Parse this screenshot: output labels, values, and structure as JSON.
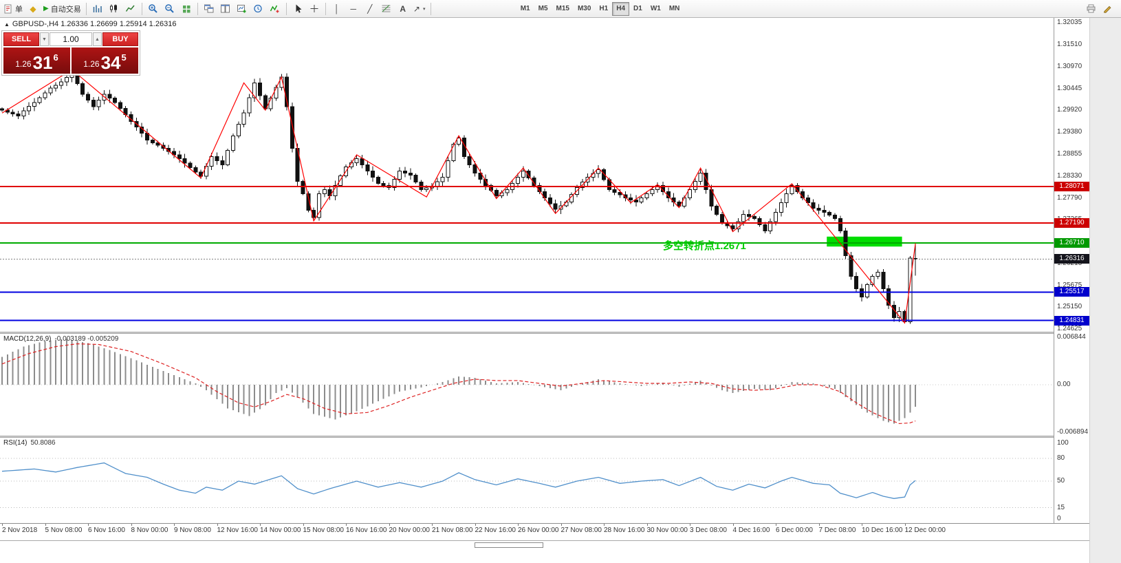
{
  "toolbar": {
    "new_order_label": "单",
    "autotrading_label": "自动交易",
    "timeframes": [
      "M1",
      "M5",
      "M15",
      "M30",
      "H1",
      "H4",
      "D1",
      "W1",
      "MN"
    ],
    "active_timeframe": "H4",
    "glyphs": {
      "diamond": "◆",
      "play": "▶",
      "crosshair": "+",
      "vline": "│",
      "hline": "─",
      "trendline": "╱",
      "text_tool": "A",
      "arrow_tool": "↗",
      "caret": "▾",
      "spin_up": "▲",
      "spin_down": "▼",
      "triangle_up": "▲"
    }
  },
  "quote": {
    "symbol_line": "GBPUSD-,H4 1.26336 1.26699 1.25914 1.26316",
    "open": 1.26336,
    "high": 1.26699,
    "low": 1.25914,
    "close": 1.26316
  },
  "one_click": {
    "sell_label": "SELL",
    "buy_label": "BUY",
    "volume": "1.00",
    "sell_price_small": "1.26",
    "sell_price_big": "31",
    "sell_price_sup": "6",
    "buy_price_small": "1.26",
    "buy_price_big": "34",
    "buy_price_sup": "5"
  },
  "chart_data": [
    {
      "type": "candlestick",
      "title": "GBPUSD-,H4",
      "first_open": 1.2995,
      "closes": [
        1.2992,
        1.2987,
        1.2983,
        1.2978,
        1.299,
        1.3001,
        1.301,
        1.3022,
        1.3034,
        1.3045,
        1.3052,
        1.306,
        1.3071,
        1.3082,
        1.3056,
        1.303,
        1.3016,
        1.3,
        1.3016,
        1.303,
        1.3021,
        1.301,
        1.2996,
        1.2981,
        1.2965,
        1.2951,
        1.2936,
        1.292,
        1.2913,
        1.2907,
        1.29,
        1.2892,
        1.2884,
        1.2875,
        1.2864,
        1.2853,
        1.2842,
        1.2832,
        1.2856,
        1.288,
        1.287,
        1.286,
        1.2895,
        1.293,
        1.2958,
        1.2985,
        1.3022,
        1.3058,
        1.3027,
        1.2995,
        1.3021,
        1.3047,
        1.3072,
        1.3,
        1.29,
        1.282,
        1.279,
        1.275,
        1.2732,
        1.279,
        1.28,
        1.2785,
        1.281,
        1.2833,
        1.2855,
        1.2865,
        1.2875,
        1.286,
        1.2845,
        1.283,
        1.2815,
        1.281,
        1.2805,
        1.2825,
        1.2845,
        1.284,
        1.2835,
        1.2818,
        1.28,
        1.2804,
        1.2808,
        1.2819,
        1.283,
        1.287,
        1.291,
        1.2925,
        1.288,
        1.286,
        1.284,
        1.2825,
        1.281,
        1.2798,
        1.2785,
        1.2792,
        1.28,
        1.2815,
        1.283,
        1.2845,
        1.2828,
        1.281,
        1.2795,
        1.278,
        1.2766,
        1.2752,
        1.2761,
        1.277,
        1.2788,
        1.2805,
        1.2818,
        1.283,
        1.2839,
        1.2848,
        1.2824,
        1.28,
        1.2793,
        1.2787,
        1.278,
        1.2775,
        1.277,
        1.278,
        1.279,
        1.28,
        1.281,
        1.2795,
        1.278,
        1.277,
        1.276,
        1.278,
        1.28,
        1.282,
        1.284,
        1.28,
        1.276,
        1.274,
        1.272,
        1.2712,
        1.2705,
        1.2722,
        1.274,
        1.2735,
        1.273,
        1.2715,
        1.27,
        1.2722,
        1.2745,
        1.2768,
        1.279,
        1.281,
        1.2795,
        1.278,
        1.2768,
        1.2755,
        1.275,
        1.2745,
        1.2738,
        1.273,
        1.27,
        1.264,
        1.259,
        1.256,
        1.254,
        1.257,
        1.259,
        1.26,
        1.256,
        1.252,
        1.249,
        1.2505,
        1.248,
        1.2634,
        1.26316
      ],
      "last_ohlc": [
        1.26336,
        1.26699,
        1.25914,
        1.26316
      ],
      "zigzag": [
        [
          0,
          1.2985
        ],
        [
          13,
          1.309
        ],
        [
          37,
          1.2828
        ],
        [
          45,
          1.3058
        ],
        [
          49,
          1.2992
        ],
        [
          52,
          1.3072
        ],
        [
          58,
          1.2724
        ],
        [
          66,
          1.2884
        ],
        [
          79,
          1.2782
        ],
        [
          85,
          1.293
        ],
        [
          92,
          1.2778
        ],
        [
          97,
          1.2852
        ],
        [
          103,
          1.2742
        ],
        [
          111,
          1.2852
        ],
        [
          117,
          1.2768
        ],
        [
          122,
          1.2812
        ],
        [
          126,
          1.2756
        ],
        [
          130,
          1.2852
        ],
        [
          136,
          1.2698
        ],
        [
          147,
          1.2814
        ],
        [
          168,
          1.2477
        ],
        [
          170,
          1.267
        ]
      ],
      "levels": [
        {
          "price": 1.28071,
          "color": "#e00000",
          "label_bg": "#cc0000",
          "style": "solid",
          "width": 2
        },
        {
          "price": 1.2719,
          "color": "#e00000",
          "label_bg": "#cc0000",
          "style": "solid",
          "width": 2
        },
        {
          "price": 1.2671,
          "color": "#00aa00",
          "label_bg": "#009900",
          "style": "solid",
          "width": 2
        },
        {
          "price": 1.25517,
          "color": "#0000e0",
          "label_bg": "#0000cc",
          "style": "solid",
          "width": 2
        },
        {
          "price": 1.24831,
          "color": "#0000e0",
          "label_bg": "#0000cc",
          "style": "solid",
          "width": 2
        },
        {
          "price": 1.26316,
          "color": "#808080",
          "label_bg": "#14141c",
          "style": "dotted",
          "width": 1
        }
      ],
      "zone": {
        "bar_start": 153.5,
        "bar_end": 167.5,
        "price_top": 1.2686,
        "price_bottom": 1.2662,
        "color": "#00dd00"
      },
      "annotation": {
        "text": "多空转折点1.2671",
        "bar": 123,
        "price": 1.2656,
        "color": "#00cc00",
        "font_size": 15
      },
      "y_axis": [
        1.32035,
        1.3151,
        1.3097,
        1.30445,
        1.2992,
        1.2938,
        1.28855,
        1.2833,
        1.2779,
        1.27265,
        1.2674,
        1.26215,
        1.25675,
        1.2515,
        1.24625
      ],
      "x_axis": [
        [
          "2 Nov 2018",
          0
        ],
        [
          "5 Nov 08:00",
          8
        ],
        [
          "6 Nov 16:00",
          16
        ],
        [
          "8 Nov 00:00",
          24
        ],
        [
          "9 Nov 08:00",
          32
        ],
        [
          "12 Nov 16:00",
          40
        ],
        [
          "14 Nov 00:00",
          48
        ],
        [
          "15 Nov 08:00",
          56
        ],
        [
          "16 Nov 16:00",
          64
        ],
        [
          "20 Nov 00:00",
          72
        ],
        [
          "21 Nov 08:00",
          80
        ],
        [
          "22 Nov 16:00",
          88
        ],
        [
          "26 Nov 00:00",
          96
        ],
        [
          "27 Nov 08:00",
          104
        ],
        [
          "28 Nov 16:00",
          112
        ],
        [
          "30 Nov 00:00",
          120
        ],
        [
          "3 Dec 08:00",
          128
        ],
        [
          "4 Dec 16:00",
          136
        ],
        [
          "6 Dec 00:00",
          144
        ],
        [
          "7 Dec 08:00",
          152
        ],
        [
          "10 Dec 16:00",
          160
        ],
        [
          "12 Dec 00:00",
          168
        ]
      ]
    },
    {
      "type": "macd",
      "label": "MACD(12,26,9)",
      "values": "-0.003189 -0.005209",
      "main": -0.003189,
      "signal": -0.005209,
      "scale": [
        {
          "v": 0.006844,
          "t": "0.006844"
        },
        {
          "v": 0,
          "t": "0.00"
        },
        {
          "v": -0.006894,
          "t": "-0.006894"
        }
      ],
      "histogram_points": [
        [
          0,
          0.004
        ],
        [
          4,
          0.0055
        ],
        [
          8,
          0.0063
        ],
        [
          12,
          0.0066
        ],
        [
          16,
          0.006
        ],
        [
          20,
          0.005
        ],
        [
          24,
          0.0038
        ],
        [
          28,
          0.0026
        ],
        [
          32,
          0.0014
        ],
        [
          36,
          0.0002
        ],
        [
          38,
          -0.0008
        ],
        [
          42,
          -0.0034
        ],
        [
          46,
          -0.0045
        ],
        [
          49,
          -0.003
        ],
        [
          51,
          -0.0012
        ],
        [
          53,
          -0.0005
        ],
        [
          55,
          -0.0018
        ],
        [
          58,
          -0.0042
        ],
        [
          62,
          -0.005
        ],
        [
          66,
          -0.0038
        ],
        [
          70,
          -0.0024
        ],
        [
          74,
          -0.001
        ],
        [
          78,
          -0.0004
        ],
        [
          82,
          0.0004
        ],
        [
          85,
          0.0012
        ],
        [
          88,
          0.001
        ],
        [
          92,
          0.0002
        ],
        [
          96,
          0.0004
        ],
        [
          100,
          -0.0002
        ],
        [
          104,
          -0.0008
        ],
        [
          108,
          0.0002
        ],
        [
          111,
          0.0008
        ],
        [
          115,
          0.0002
        ],
        [
          119,
          -0.0002
        ],
        [
          123,
          0.0003
        ],
        [
          126,
          -0.0003
        ],
        [
          130,
          0.0006
        ],
        [
          134,
          -0.0008
        ],
        [
          136,
          -0.0012
        ],
        [
          140,
          -0.0006
        ],
        [
          143,
          -0.0008
        ],
        [
          147,
          0.0004
        ],
        [
          151,
          0.0002
        ],
        [
          155,
          -0.0006
        ],
        [
          158,
          -0.0024
        ],
        [
          161,
          -0.004
        ],
        [
          164,
          -0.0052
        ],
        [
          166,
          -0.0056
        ],
        [
          168,
          -0.0048
        ],
        [
          170,
          -0.003189
        ]
      ],
      "signal_points": [
        [
          0,
          0.003
        ],
        [
          5,
          0.0045
        ],
        [
          10,
          0.0055
        ],
        [
          14,
          0.0059
        ],
        [
          18,
          0.0058
        ],
        [
          24,
          0.0048
        ],
        [
          30,
          0.003
        ],
        [
          36,
          0.001
        ],
        [
          40,
          -0.001
        ],
        [
          44,
          -0.0026
        ],
        [
          47,
          -0.0032
        ],
        [
          50,
          -0.0024
        ],
        [
          53,
          -0.0014
        ],
        [
          56,
          -0.002
        ],
        [
          60,
          -0.0034
        ],
        [
          64,
          -0.0042
        ],
        [
          68,
          -0.004
        ],
        [
          72,
          -0.003
        ],
        [
          76,
          -0.0018
        ],
        [
          80,
          -0.0008
        ],
        [
          84,
          0.0002
        ],
        [
          88,
          0.0008
        ],
        [
          92,
          0.0006
        ],
        [
          96,
          0.0006
        ],
        [
          100,
          0.0002
        ],
        [
          104,
          -0.0002
        ],
        [
          108,
          0.0002
        ],
        [
          112,
          0.0006
        ],
        [
          116,
          0.0004
        ],
        [
          120,
          0.0002
        ],
        [
          124,
          0.0002
        ],
        [
          128,
          0.0004
        ],
        [
          132,
          0.0002
        ],
        [
          136,
          -0.0006
        ],
        [
          140,
          -0.0008
        ],
        [
          144,
          -0.0006
        ],
        [
          148,
          0
        ],
        [
          152,
          0
        ],
        [
          156,
          -0.001
        ],
        [
          159,
          -0.0026
        ],
        [
          162,
          -0.004
        ],
        [
          165,
          -0.005
        ],
        [
          167,
          -0.0056
        ],
        [
          169,
          -0.0055
        ],
        [
          170,
          -0.005209
        ]
      ]
    },
    {
      "type": "rsi",
      "label": "RSI(14)",
      "value_str": "50.8086",
      "value": 50.8086,
      "levels": [
        80,
        50,
        15
      ],
      "scale": [
        {
          "v": 100,
          "t": "100"
        },
        {
          "v": 80,
          "t": "80"
        },
        {
          "v": 50,
          "t": "50"
        },
        {
          "v": 15,
          "t": "15"
        },
        {
          "v": 0,
          "t": "0"
        }
      ],
      "points": [
        [
          0,
          63
        ],
        [
          6,
          66
        ],
        [
          10,
          62
        ],
        [
          14,
          68
        ],
        [
          19,
          74
        ],
        [
          23,
          60
        ],
        [
          27,
          55
        ],
        [
          30,
          46
        ],
        [
          33,
          38
        ],
        [
          36,
          34
        ],
        [
          38,
          42
        ],
        [
          41,
          38
        ],
        [
          44,
          50
        ],
        [
          47,
          46
        ],
        [
          52,
          57
        ],
        [
          55,
          40
        ],
        [
          58,
          33
        ],
        [
          61,
          40
        ],
        [
          64,
          46
        ],
        [
          66,
          50
        ],
        [
          70,
          42
        ],
        [
          74,
          48
        ],
        [
          78,
          42
        ],
        [
          82,
          50
        ],
        [
          85,
          61
        ],
        [
          88,
          52
        ],
        [
          92,
          45
        ],
        [
          96,
          53
        ],
        [
          100,
          47
        ],
        [
          103,
          42
        ],
        [
          107,
          50
        ],
        [
          111,
          55
        ],
        [
          115,
          47
        ],
        [
          119,
          50
        ],
        [
          123,
          52
        ],
        [
          126,
          44
        ],
        [
          130,
          55
        ],
        [
          133,
          43
        ],
        [
          136,
          38
        ],
        [
          139,
          46
        ],
        [
          142,
          41
        ],
        [
          145,
          50
        ],
        [
          147,
          55
        ],
        [
          151,
          47
        ],
        [
          154,
          45
        ],
        [
          156,
          34
        ],
        [
          159,
          28
        ],
        [
          162,
          35
        ],
        [
          164,
          30
        ],
        [
          166,
          27
        ],
        [
          168,
          29
        ],
        [
          169,
          45
        ],
        [
          170,
          50.81
        ]
      ]
    }
  ]
}
